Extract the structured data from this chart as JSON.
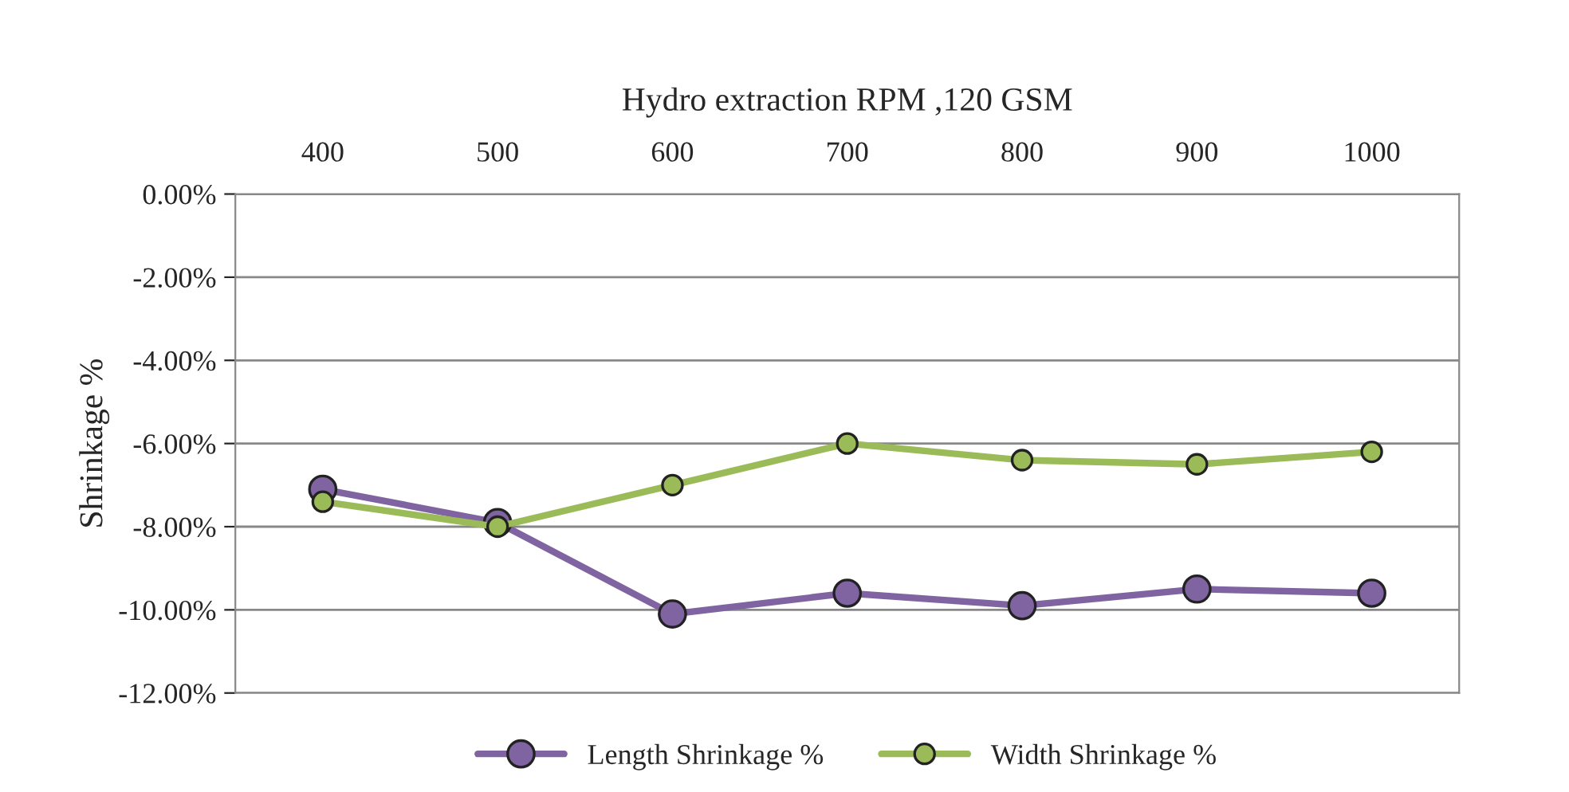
{
  "chart_data": {
    "type": "line",
    "xlabel": "Hydro extraction RPM ,120 GSM",
    "ylabel": "Shrinkage %",
    "categories": [
      "400",
      "500",
      "600",
      "700",
      "800",
      "900",
      "1000"
    ],
    "series": [
      {
        "name": "Length Shrinkage %",
        "color": "#8064a2",
        "values": [
          -7.1,
          -7.9,
          -10.1,
          -9.6,
          -9.9,
          -9.5,
          -9.6
        ]
      },
      {
        "name": "Width Shrinkage %",
        "color": "#9bbb59",
        "values": [
          -7.4,
          -8.0,
          -7.0,
          -6.0,
          -6.4,
          -6.5,
          -6.2
        ]
      }
    ],
    "ylim": [
      -12,
      0
    ],
    "yticks": [
      {
        "value": 0,
        "label": "0.00%"
      },
      {
        "value": -2,
        "label": "-2.00%"
      },
      {
        "value": -4,
        "label": "-4.00%"
      },
      {
        "value": -6,
        "label": "-6.00%"
      },
      {
        "value": -8,
        "label": "-8.00%"
      },
      {
        "value": -10,
        "label": "-10.00%"
      },
      {
        "value": -12,
        "label": "-12.00%"
      }
    ],
    "grid": "y",
    "legend": "bottom",
    "marker": "circle",
    "line_style": "solid"
  }
}
